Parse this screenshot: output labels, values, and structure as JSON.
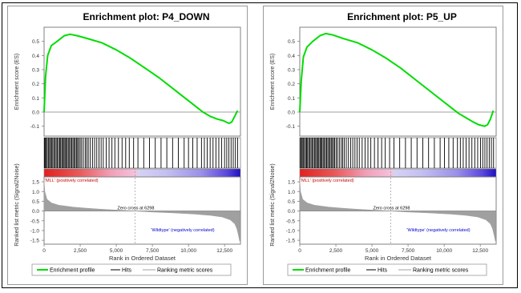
{
  "chart_data": [
    {
      "type": "line",
      "title": "Enrichment plot: P4_DOWN",
      "top_ylabel": "Enrichment score (ES)",
      "bottom_ylabel": "Ranked list metric (Signal2Noise)",
      "xlabel": "Rank in Ordered Dataset",
      "xlim": [
        0,
        13600
      ],
      "es_ylim": [
        -0.17,
        0.6
      ],
      "es_yticks": [
        "0.5",
        "0.4",
        "0.3",
        "0.2",
        "0.1",
        "0.0",
        "-0.1"
      ],
      "metric_ylim": [
        -1.7,
        1.75
      ],
      "metric_yticks": [
        "1.5",
        "1.0",
        "0.5",
        "0.0",
        "-0.5",
        "-1.0",
        "-1.5"
      ],
      "xticks": [
        "0",
        "2,500",
        "5,000",
        "7,500",
        "10,000",
        "12,500"
      ],
      "xtick_values": [
        0,
        2500,
        5000,
        7500,
        10000,
        12500
      ],
      "es_curve": {
        "x": [
          0,
          100,
          250,
          500,
          900,
          1400,
          1800,
          2300,
          3000,
          4000,
          5000,
          6000,
          7000,
          8000,
          9000,
          10000,
          10500,
          11000,
          11500,
          12000,
          12400,
          12800,
          13000,
          13200,
          13400
        ],
        "y": [
          0,
          0.25,
          0.4,
          0.47,
          0.5,
          0.54,
          0.55,
          0.54,
          0.52,
          0.49,
          0.44,
          0.38,
          0.31,
          0.24,
          0.16,
          0.08,
          0.04,
          0.0,
          -0.03,
          -0.05,
          -0.06,
          -0.08,
          -0.07,
          -0.03,
          0.01
        ]
      },
      "hit_positions": [
        30,
        90,
        150,
        220,
        300,
        380,
        450,
        520,
        600,
        680,
        760,
        840,
        920,
        1000,
        1080,
        1150,
        1230,
        1300,
        1380,
        1450,
        1520,
        1600,
        1680,
        1760,
        1840,
        1920,
        2000,
        2080,
        2160,
        2240,
        2320,
        2400,
        2500,
        2600,
        2720,
        2850,
        2950,
        3060,
        3200,
        3350,
        3500,
        3650,
        3800,
        3950,
        4100,
        4300,
        4500,
        4700,
        4900,
        5150,
        5400,
        5650,
        5900,
        6200,
        6500,
        6900,
        7300,
        7700,
        8100,
        8500,
        8900,
        9300,
        9700,
        10000,
        10300,
        10600,
        10900,
        11100,
        11300,
        11500,
        11700,
        11900,
        12100,
        12300,
        12500,
        12650,
        12800,
        12950,
        13100,
        13250,
        13400
      ],
      "zero_cross_label": "Zero cross at 6298",
      "zero_cross_value": 6298,
      "positive_label": "'MLL' (positively correlated)",
      "negative_label": "'Wildtype' (negatively correlated)",
      "metric_curve": {
        "x": [
          0,
          50,
          200,
          500,
          1000,
          2000,
          3000,
          4000,
          5000,
          6298,
          7500,
          9000,
          10500,
          11500,
          12300,
          12900,
          13200,
          13350,
          13450,
          13550
        ],
        "y": [
          1.55,
          1.0,
          0.6,
          0.42,
          0.3,
          0.2,
          0.14,
          0.09,
          0.05,
          0.0,
          -0.05,
          -0.1,
          -0.16,
          -0.22,
          -0.3,
          -0.45,
          -0.65,
          -0.9,
          -1.2,
          -1.55
        ]
      },
      "legend": [
        "Enrichment profile",
        "Hits",
        "Ranking metric scores"
      ],
      "colors": {
        "es": "#00dd00",
        "hits": "#000000",
        "metric": "#a0a0a0",
        "pos_label": "#cc0000",
        "neg_label": "#0000cc"
      }
    },
    {
      "type": "line",
      "title": "Enrichment plot: P5_UP",
      "top_ylabel": "Enrichment score (ES)",
      "bottom_ylabel": "Ranked list metric (Signal2Noise)",
      "xlabel": "Rank in Ordered Dataset",
      "xlim": [
        0,
        13600
      ],
      "es_ylim": [
        -0.17,
        0.6
      ],
      "es_yticks": [
        "0.5",
        "0.4",
        "0.3",
        "0.2",
        "0.1",
        "0.0",
        "-0.1"
      ],
      "metric_ylim": [
        -1.7,
        1.75
      ],
      "metric_yticks": [
        "1.5",
        "1.0",
        "0.5",
        "0.0",
        "-0.5",
        "-1.0",
        "-1.5"
      ],
      "xticks": [
        "0",
        "2,500",
        "5,000",
        "7,500",
        "10,000",
        "12,500"
      ],
      "xtick_values": [
        0,
        2500,
        5000,
        7500,
        10000,
        12500
      ],
      "es_curve": {
        "x": [
          0,
          100,
          250,
          500,
          900,
          1400,
          1800,
          2300,
          3000,
          4000,
          5000,
          6000,
          7000,
          8000,
          9000,
          10000,
          10500,
          11000,
          11500,
          12000,
          12400,
          12800,
          13000,
          13200,
          13400
        ],
        "y": [
          0,
          0.22,
          0.39,
          0.46,
          0.5,
          0.54,
          0.555,
          0.545,
          0.52,
          0.49,
          0.44,
          0.38,
          0.31,
          0.23,
          0.15,
          0.07,
          0.03,
          -0.01,
          -0.04,
          -0.07,
          -0.09,
          -0.1,
          -0.09,
          -0.05,
          0.01
        ]
      },
      "hit_positions": [
        40,
        110,
        170,
        240,
        320,
        400,
        470,
        540,
        620,
        700,
        780,
        860,
        940,
        1020,
        1100,
        1170,
        1250,
        1320,
        1400,
        1470,
        1540,
        1620,
        1700,
        1780,
        1860,
        1940,
        2020,
        2100,
        2180,
        2260,
        2340,
        2420,
        2520,
        2620,
        2740,
        2870,
        2970,
        3080,
        3220,
        3370,
        3520,
        3670,
        3820,
        3970,
        4120,
        4320,
        4520,
        4720,
        4920,
        5170,
        5420,
        5670,
        5920,
        6220,
        6520,
        6920,
        7320,
        7720,
        8120,
        8520,
        8920,
        9320,
        9720,
        10020,
        10320,
        10620,
        10920,
        11120,
        11320,
        11520,
        11720,
        11920,
        12120,
        12320,
        12520,
        12670,
        12820,
        12970,
        13120,
        13270,
        13420
      ],
      "zero_cross_label": "Zero cross at 6298",
      "zero_cross_value": 6298,
      "positive_label": "'MLL' (positively correlated)",
      "negative_label": "'Wildtype' (negatively correlated)",
      "metric_curve": {
        "x": [
          0,
          50,
          200,
          500,
          1000,
          2000,
          3000,
          4000,
          5000,
          6298,
          7500,
          9000,
          10500,
          11500,
          12300,
          12900,
          13200,
          13350,
          13450,
          13550
        ],
        "y": [
          1.55,
          1.0,
          0.6,
          0.42,
          0.3,
          0.2,
          0.14,
          0.09,
          0.05,
          0.0,
          -0.05,
          -0.1,
          -0.16,
          -0.22,
          -0.3,
          -0.45,
          -0.65,
          -0.9,
          -1.2,
          -1.55
        ]
      },
      "legend": [
        "Enrichment profile",
        "Hits",
        "Ranking metric scores"
      ],
      "colors": {
        "es": "#00dd00",
        "hits": "#000000",
        "metric": "#a0a0a0",
        "pos_label": "#cc0000",
        "neg_label": "#0000cc"
      }
    }
  ]
}
